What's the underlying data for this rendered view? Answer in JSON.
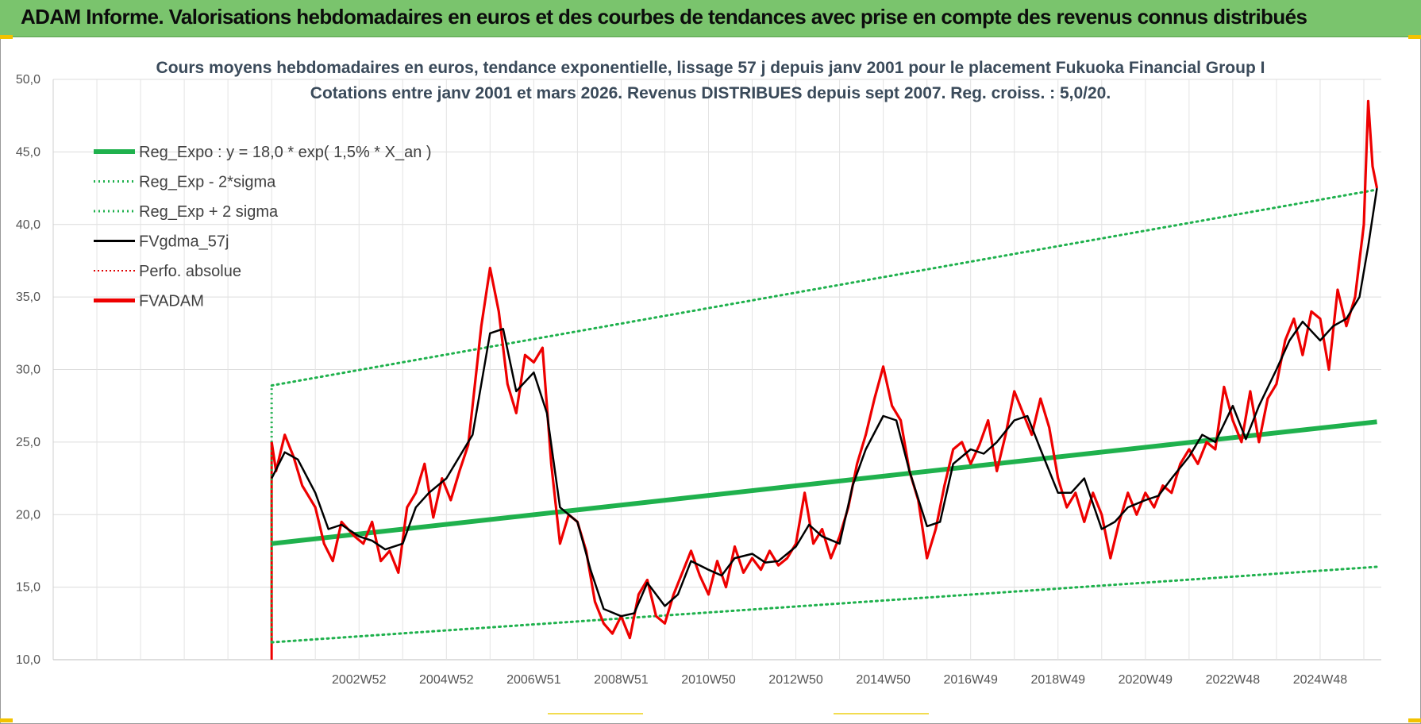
{
  "header": {
    "title": "ADAM Informe. Valorisations hebdomadaires en euros et des courbes de tendances avec prise en compte des revenus connus distribués"
  },
  "colors": {
    "banner": "#7ac46d",
    "reg_expo": "#1fb14d",
    "sigma_bands": "#1fb14d",
    "fvgdma": "#000000",
    "perfo": "#e00000",
    "fvadam": "#ee0000"
  },
  "chart_data": {
    "type": "line",
    "title": "Cours moyens hebdomadaires en euros, tendance exponentielle, lissage 57 j depuis janv 2001 pour le placement Fukuoka Financial Group I",
    "subtitle": "Cotations entre janv 2001 et mars 2026. Revenus DISTRIBUES depuis sept 2007. Reg. croiss. : 5,0/20.",
    "y_ticks": [
      "10,0",
      "15,0",
      "20,0",
      "25,0",
      "30,0",
      "35,0",
      "40,0",
      "45,0",
      "50,0"
    ],
    "ylim": [
      10,
      50
    ],
    "x_ticks": [
      "2002W52",
      "2004W52",
      "2006W51",
      "2008W51",
      "2010W50",
      "2012W50",
      "2014W50",
      "2016W49",
      "2018W49",
      "2020W49",
      "2022W48",
      "2024W48"
    ],
    "x_tick_years": [
      2003,
      2005,
      2007,
      2009,
      2011,
      2013,
      2015,
      2017,
      2019,
      2021,
      2023,
      2025
    ],
    "xlim": [
      1996,
      2026.4
    ],
    "grid": true,
    "legend_position": "top-left",
    "legend": [
      {
        "label": "Reg_Expo : y = 18,0 * exp( 1,5% *  X_an )",
        "style": "thick-solid-green"
      },
      {
        "label": "Reg_Exp - 2*sigma",
        "style": "dotted-green"
      },
      {
        "label": "Reg_Exp + 2 sigma",
        "style": "dotted-green"
      },
      {
        "label": "FVgdma_57j",
        "style": "solid-black"
      },
      {
        "label": "Perfo. absolue",
        "style": "dotted-red"
      },
      {
        "label": "FVADAM",
        "style": "thick-solid-red"
      }
    ],
    "series": [
      {
        "name": "Reg_Expo : y = 18,0 * exp( 1,5% *  X_an )",
        "x": [
          2001.0,
          2026.3
        ],
        "y": [
          18.0,
          26.4
        ]
      },
      {
        "name": "Reg_Exp - 2*sigma",
        "x": [
          2001.0,
          2026.3
        ],
        "y": [
          11.2,
          16.4
        ]
      },
      {
        "name": "Reg_Exp + 2 sigma",
        "x": [
          2001.0,
          2026.3
        ],
        "y": [
          28.9,
          42.4
        ]
      },
      {
        "name": "FVgdma_57j",
        "x": [
          2001.0,
          2001.3,
          2001.6,
          2002.0,
          2002.3,
          2002.6,
          2003.0,
          2003.3,
          2003.6,
          2004.0,
          2004.3,
          2004.6,
          2005.0,
          2005.3,
          2005.6,
          2006.0,
          2006.3,
          2006.6,
          2007.0,
          2007.3,
          2007.6,
          2008.0,
          2008.3,
          2008.6,
          2009.0,
          2009.3,
          2009.6,
          2010.0,
          2010.3,
          2010.6,
          2011.0,
          2011.3,
          2011.6,
          2012.0,
          2012.3,
          2012.6,
          2013.0,
          2013.3,
          2013.6,
          2014.0,
          2014.3,
          2014.6,
          2015.0,
          2015.3,
          2015.6,
          2016.0,
          2016.3,
          2016.6,
          2017.0,
          2017.3,
          2017.6,
          2018.0,
          2018.3,
          2018.6,
          2019.0,
          2019.3,
          2019.6,
          2020.0,
          2020.3,
          2020.6,
          2021.0,
          2021.3,
          2021.6,
          2022.0,
          2022.3,
          2022.6,
          2023.0,
          2023.3,
          2023.6,
          2024.0,
          2024.3,
          2024.6,
          2025.0,
          2025.3,
          2025.6,
          2025.9,
          2026.1,
          2026.3
        ],
        "y": [
          22.5,
          24.3,
          23.8,
          21.5,
          19.0,
          19.3,
          18.5,
          18.2,
          17.6,
          18.0,
          20.5,
          21.5,
          22.5,
          24.0,
          25.5,
          32.5,
          32.8,
          28.5,
          29.8,
          27.0,
          20.5,
          19.5,
          16.2,
          13.5,
          13.0,
          13.2,
          15.3,
          13.7,
          14.5,
          16.8,
          16.2,
          15.8,
          17.0,
          17.3,
          16.7,
          16.8,
          17.8,
          19.3,
          18.5,
          18.0,
          22.0,
          24.5,
          26.8,
          26.5,
          23.0,
          19.2,
          19.5,
          23.5,
          24.5,
          24.2,
          25.0,
          26.5,
          26.8,
          24.5,
          21.5,
          21.5,
          22.5,
          19.0,
          19.5,
          20.5,
          21.0,
          21.3,
          22.5,
          24.0,
          25.5,
          25.0,
          27.5,
          25.2,
          27.5,
          30.0,
          32.0,
          33.3,
          32.0,
          33.0,
          33.5,
          35.0,
          38.5,
          42.5
        ]
      },
      {
        "name": "FVADAM",
        "x": [
          2001.0,
          2001.1,
          2001.3,
          2001.5,
          2001.7,
          2002.0,
          2002.2,
          2002.4,
          2002.6,
          2002.9,
          2003.1,
          2003.3,
          2003.5,
          2003.7,
          2003.9,
          2004.1,
          2004.3,
          2004.5,
          2004.7,
          2004.9,
          2005.1,
          2005.3,
          2005.5,
          2005.6,
          2005.8,
          2006.0,
          2006.2,
          2006.4,
          2006.6,
          2006.8,
          2007.0,
          2007.2,
          2007.4,
          2007.6,
          2007.8,
          2008.0,
          2008.2,
          2008.4,
          2008.6,
          2008.8,
          2009.0,
          2009.2,
          2009.4,
          2009.6,
          2009.8,
          2010.0,
          2010.2,
          2010.4,
          2010.6,
          2010.8,
          2011.0,
          2011.2,
          2011.4,
          2011.6,
          2011.8,
          2012.0,
          2012.2,
          2012.4,
          2012.6,
          2012.8,
          2013.0,
          2013.2,
          2013.4,
          2013.6,
          2013.8,
          2014.0,
          2014.2,
          2014.4,
          2014.6,
          2014.8,
          2015.0,
          2015.2,
          2015.4,
          2015.6,
          2015.8,
          2016.0,
          2016.2,
          2016.4,
          2016.6,
          2016.8,
          2017.0,
          2017.2,
          2017.4,
          2017.6,
          2017.8,
          2018.0,
          2018.2,
          2018.4,
          2018.6,
          2018.8,
          2019.0,
          2019.2,
          2019.4,
          2019.6,
          2019.8,
          2020.0,
          2020.2,
          2020.4,
          2020.6,
          2020.8,
          2021.0,
          2021.2,
          2021.4,
          2021.6,
          2021.8,
          2022.0,
          2022.2,
          2022.4,
          2022.6,
          2022.8,
          2023.0,
          2023.2,
          2023.4,
          2023.6,
          2023.8,
          2024.0,
          2024.2,
          2024.4,
          2024.6,
          2024.8,
          2025.0,
          2025.2,
          2025.4,
          2025.6,
          2025.8,
          2026.0,
          2026.1,
          2026.2,
          2026.3
        ],
        "y": [
          25.0,
          23.0,
          25.5,
          24.0,
          22.0,
          20.5,
          18.0,
          16.8,
          19.5,
          18.5,
          18.0,
          19.5,
          16.8,
          17.5,
          16.0,
          20.5,
          21.5,
          23.5,
          19.8,
          22.5,
          21.0,
          23.0,
          24.8,
          27.5,
          33.0,
          37.0,
          34.0,
          29.0,
          27.0,
          31.0,
          30.5,
          31.5,
          23.5,
          18.0,
          20.0,
          19.5,
          17.5,
          14.0,
          12.5,
          11.8,
          13.0,
          11.5,
          14.5,
          15.5,
          13.0,
          12.5,
          14.5,
          16.0,
          17.5,
          15.8,
          14.5,
          16.8,
          15.0,
          17.8,
          16.0,
          17.0,
          16.2,
          17.5,
          16.5,
          17.0,
          18.0,
          21.5,
          18.0,
          19.0,
          17.0,
          18.5,
          20.5,
          23.5,
          25.5,
          28.0,
          30.2,
          27.5,
          26.5,
          23.0,
          21.0,
          17.0,
          19.0,
          22.0,
          24.5,
          25.0,
          23.5,
          24.8,
          26.5,
          23.0,
          25.5,
          28.5,
          27.0,
          25.5,
          28.0,
          26.0,
          22.5,
          20.5,
          21.5,
          19.5,
          21.5,
          20.0,
          17.0,
          19.5,
          21.5,
          20.0,
          21.5,
          20.5,
          22.0,
          21.5,
          23.5,
          24.5,
          23.5,
          25.0,
          24.5,
          28.8,
          26.5,
          25.0,
          28.5,
          25.0,
          28.0,
          29.0,
          32.0,
          33.5,
          31.0,
          34.0,
          33.5,
          30.0,
          35.5,
          33.0,
          35.0,
          40.0,
          48.5,
          44.0,
          42.5
        ]
      }
    ]
  }
}
